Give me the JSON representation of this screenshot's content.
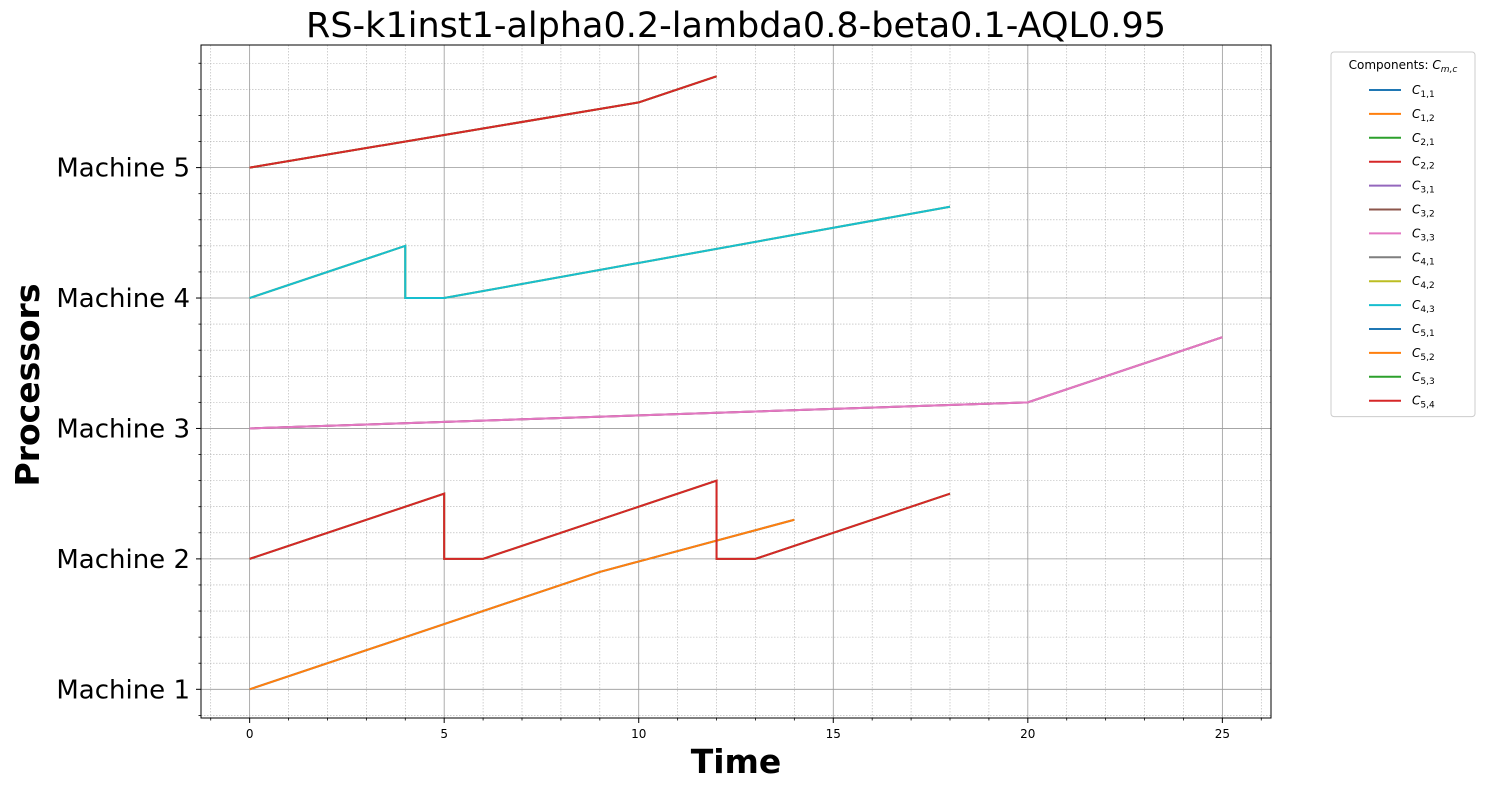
{
  "chart_data": {
    "type": "line",
    "title": "RS-k1inst1-alpha0.2-lambda0.8-beta0.1-AQL0.95",
    "xlabel": "Time",
    "ylabel": "Processors",
    "xlim": [
      -1.25,
      26.25
    ],
    "ylim": [
      0.78,
      5.94
    ],
    "x_ticks": [
      0,
      5,
      10,
      15,
      20,
      25
    ],
    "y_ticks": [
      {
        "value": 1,
        "label": "Machine 1"
      },
      {
        "value": 2,
        "label": "Machine 2"
      },
      {
        "value": 3,
        "label": "Machine 3"
      },
      {
        "value": 4,
        "label": "Machine 4"
      },
      {
        "value": 5,
        "label": "Machine 5"
      }
    ],
    "grid": true,
    "legend": {
      "title_prefix": "Components: ",
      "title_math": "m,c",
      "placement": "outside-top-right"
    },
    "series": [
      {
        "name": "C",
        "sub": "1,1",
        "color": "#1f77b4",
        "points": [
          [
            0,
            1.0
          ],
          [
            9,
            1.9
          ],
          [
            14,
            2.3
          ]
        ]
      },
      {
        "name": "C",
        "sub": "1,2",
        "color": "#ff7f0e",
        "points": [
          [
            0,
            1.0
          ],
          [
            9,
            1.9
          ],
          [
            14,
            2.3
          ]
        ]
      },
      {
        "name": "C",
        "sub": "2,1",
        "color": "#2ca02c",
        "points": [
          [
            0,
            2.0
          ],
          [
            5,
            2.5
          ],
          [
            5,
            2.0
          ],
          [
            6,
            2.0
          ],
          [
            12,
            2.6
          ],
          [
            12,
            2.0
          ],
          [
            13,
            2.0
          ],
          [
            18,
            2.5
          ]
        ]
      },
      {
        "name": "C",
        "sub": "2,2",
        "color": "#d62728",
        "points": [
          [
            0,
            2.0
          ],
          [
            5,
            2.5
          ],
          [
            5,
            2.0
          ],
          [
            6,
            2.0
          ],
          [
            12,
            2.6
          ],
          [
            12,
            2.0
          ],
          [
            13,
            2.0
          ],
          [
            18,
            2.5
          ]
        ]
      },
      {
        "name": "C",
        "sub": "3,1",
        "color": "#9467bd",
        "points": [
          [
            0,
            3.0
          ],
          [
            20,
            3.2
          ],
          [
            25,
            3.7
          ]
        ]
      },
      {
        "name": "C",
        "sub": "3,2",
        "color": "#8c564b",
        "points": [
          [
            0,
            3.0
          ],
          [
            20,
            3.2
          ],
          [
            25,
            3.7
          ]
        ]
      },
      {
        "name": "C",
        "sub": "3,3",
        "color": "#e377c2",
        "points": [
          [
            0,
            3.0
          ],
          [
            20,
            3.2
          ],
          [
            25,
            3.7
          ]
        ]
      },
      {
        "name": "C",
        "sub": "4,1",
        "color": "#7f7f7f",
        "points": [
          [
            0,
            4.0
          ],
          [
            4,
            4.4
          ],
          [
            4,
            4.0
          ],
          [
            5,
            4.0
          ],
          [
            18,
            4.7
          ]
        ]
      },
      {
        "name": "C",
        "sub": "4,2",
        "color": "#bcbd22",
        "points": [
          [
            0,
            4.0
          ],
          [
            4,
            4.4
          ],
          [
            4,
            4.0
          ],
          [
            5,
            4.0
          ],
          [
            18,
            4.7
          ]
        ]
      },
      {
        "name": "C",
        "sub": "4,3",
        "color": "#17becf",
        "points": [
          [
            0,
            4.0
          ],
          [
            4,
            4.4
          ],
          [
            4,
            4.0
          ],
          [
            5,
            4.0
          ],
          [
            18,
            4.7
          ]
        ]
      },
      {
        "name": "C",
        "sub": "5,1",
        "color": "#1f77b4",
        "points": [
          [
            0,
            5.0
          ],
          [
            10,
            5.5
          ],
          [
            12,
            5.7
          ]
        ]
      },
      {
        "name": "C",
        "sub": "5,2",
        "color": "#ff7f0e",
        "points": [
          [
            0,
            5.0
          ],
          [
            10,
            5.5
          ],
          [
            12,
            5.7
          ]
        ]
      },
      {
        "name": "C",
        "sub": "5,3",
        "color": "#2ca02c",
        "points": [
          [
            0,
            5.0
          ],
          [
            10,
            5.5
          ],
          [
            12,
            5.7
          ]
        ]
      },
      {
        "name": "C",
        "sub": "5,4",
        "color": "#d62728",
        "points": [
          [
            0,
            5.0
          ],
          [
            10,
            5.5
          ],
          [
            12,
            5.7
          ]
        ]
      }
    ]
  }
}
